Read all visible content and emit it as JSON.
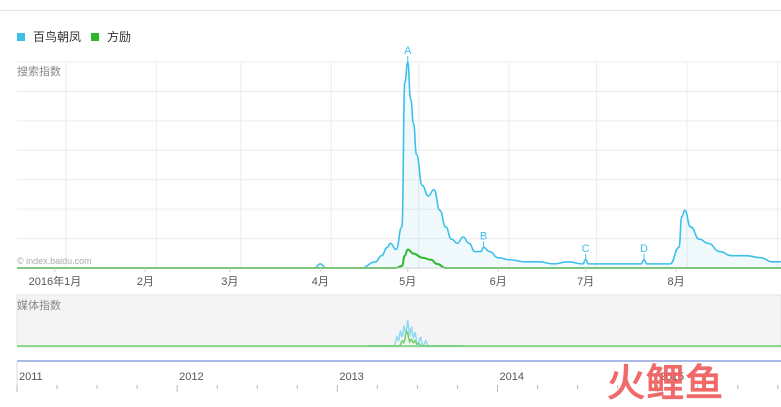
{
  "legend": [
    {
      "label": "百鸟朝凤",
      "color": "#3ec0ea"
    },
    {
      "label": "方励",
      "color": "#2fb82f"
    }
  ],
  "search_panel_label": "搜索指数",
  "media_panel_label": "媒体指数",
  "source_watermark": "© index.baidu.com",
  "brand_watermark": "火鲤鱼",
  "chart_data": [
    {
      "type": "area",
      "title": "",
      "ylabel": "搜索指数",
      "x_tick_labels": [
        "2016年1月",
        "2月",
        "3月",
        "4月",
        "5月",
        "6月",
        "7月",
        "8月"
      ],
      "x_range": [
        "2015-12-19",
        "2016-09-06"
      ],
      "y_axis_labels_visible": false,
      "grid": true,
      "legend_position": "top-left",
      "series": [
        {
          "name": "百鸟朝凤",
          "color": "#3ec0ea",
          "x": [
            "2015-12-19",
            "2016-01-15",
            "2016-02-15",
            "2016-03-15",
            "2016-03-30",
            "2016-04-01",
            "2016-04-03",
            "2016-04-15",
            "2016-04-20",
            "2016-04-22",
            "2016-04-24",
            "2016-04-25",
            "2016-04-27",
            "2016-04-29",
            "2016-04-30",
            "2016-05-01",
            "2016-05-02",
            "2016-05-03",
            "2016-05-04",
            "2016-05-06",
            "2016-05-08",
            "2016-05-10",
            "2016-05-12",
            "2016-05-14",
            "2016-05-16",
            "2016-05-18",
            "2016-05-20",
            "2016-05-22",
            "2016-05-24",
            "2016-05-26",
            "2016-05-27",
            "2016-05-29",
            "2016-06-01",
            "2016-06-05",
            "2016-06-10",
            "2016-06-15",
            "2016-06-20",
            "2016-06-25",
            "2016-06-30",
            "2016-07-01",
            "2016-07-02",
            "2016-07-05",
            "2016-07-10",
            "2016-07-15",
            "2016-07-20",
            "2016-07-21",
            "2016-07-22",
            "2016-07-25",
            "2016-07-30",
            "2016-08-02",
            "2016-08-03",
            "2016-08-04",
            "2016-08-06",
            "2016-08-09",
            "2016-08-12",
            "2016-08-16",
            "2016-08-20",
            "2016-08-25",
            "2016-08-30",
            "2016-09-03",
            "2016-09-06"
          ],
          "y": [
            0,
            0,
            0,
            0,
            0,
            2,
            0,
            0,
            3,
            6,
            10,
            12,
            9,
            20,
            90,
            100,
            82,
            70,
            55,
            40,
            35,
            38,
            28,
            20,
            14,
            12,
            15,
            12,
            8,
            8,
            10,
            8,
            5,
            4,
            3,
            3,
            2,
            3,
            2,
            4,
            2,
            2,
            2,
            2,
            2,
            4,
            2,
            2,
            2,
            10,
            25,
            28,
            20,
            14,
            12,
            8,
            6,
            6,
            5,
            3,
            3
          ]
        },
        {
          "name": "方励",
          "color": "#2fb82f",
          "x": [
            "2015-12-19",
            "2016-04-27",
            "2016-04-29",
            "2016-04-30",
            "2016-05-01",
            "2016-05-03",
            "2016-05-06",
            "2016-05-09",
            "2016-05-11",
            "2016-05-14",
            "2016-09-06"
          ],
          "y": [
            0,
            0,
            1,
            6,
            9,
            7,
            5,
            4,
            2,
            0,
            0
          ]
        }
      ],
      "annotations": [
        {
          "label": "A",
          "x": "2016-05-01"
        },
        {
          "label": "B",
          "x": "2016-05-27"
        },
        {
          "label": "C",
          "x": "2016-07-01"
        },
        {
          "label": "D",
          "x": "2016-07-21"
        }
      ]
    },
    {
      "type": "area",
      "title": "",
      "ylabel": "媒体指数",
      "y_axis_labels_visible": false,
      "series": [
        {
          "name": "百鸟朝凤",
          "color": "#8fd8f2",
          "peak_date": "2016-05-01"
        },
        {
          "name": "方励",
          "color": "#6fd06f",
          "peak_date": "2016-05-01"
        }
      ]
    },
    {
      "type": "timeline",
      "x_tick_labels": [
        "2011",
        "2012",
        "2013",
        "2014",
        "2015"
      ],
      "x_range": [
        2011.0,
        2015.77
      ],
      "selected_range": [
        "2015-12-19",
        "2016-09-06"
      ]
    }
  ]
}
